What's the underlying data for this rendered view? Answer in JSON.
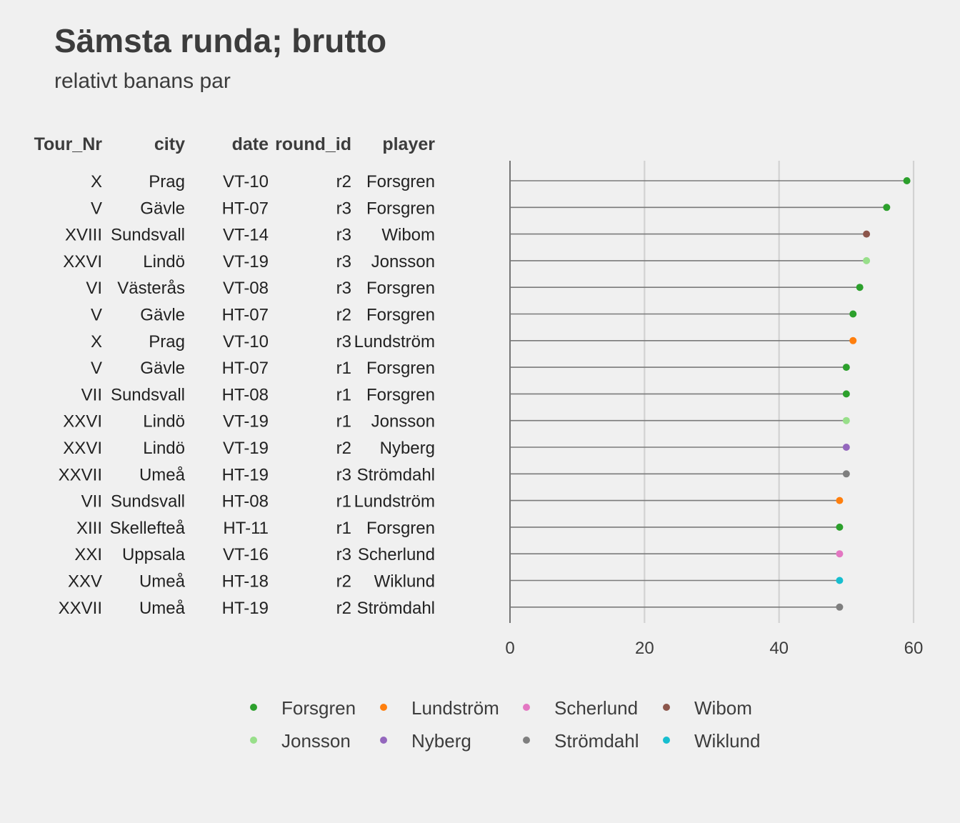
{
  "title": "Sämsta runda; brutto",
  "subtitle": "relativt banans par",
  "chart_data": {
    "type": "lollipop",
    "title": "Sämsta runda; brutto",
    "subtitle": "relativt banans par",
    "xlabel": "",
    "ylabel": "",
    "xlim": [
      0,
      60
    ],
    "x_ticks": [
      "0",
      "20",
      "40",
      "60"
    ],
    "grid": "vertical major",
    "legend_position": "bottom",
    "table_columns": [
      "Tour_Nr",
      "city",
      "date",
      "round_id",
      "player"
    ],
    "rows": [
      {
        "Tour_Nr": "X",
        "city": "Prag",
        "date": "VT-10",
        "round_id": "r2",
        "player": "Forsgren",
        "value": 59
      },
      {
        "Tour_Nr": "V",
        "city": "Gävle",
        "date": "HT-07",
        "round_id": "r3",
        "player": "Forsgren",
        "value": 56
      },
      {
        "Tour_Nr": "XVIII",
        "city": "Sundsvall",
        "date": "VT-14",
        "round_id": "r3",
        "player": "Wibom",
        "value": 53
      },
      {
        "Tour_Nr": "XXVI",
        "city": "Lindö",
        "date": "VT-19",
        "round_id": "r3",
        "player": "Jonsson",
        "value": 53
      },
      {
        "Tour_Nr": "VI",
        "city": "Västerås",
        "date": "VT-08",
        "round_id": "r3",
        "player": "Forsgren",
        "value": 52
      },
      {
        "Tour_Nr": "V",
        "city": "Gävle",
        "date": "HT-07",
        "round_id": "r2",
        "player": "Forsgren",
        "value": 51
      },
      {
        "Tour_Nr": "X",
        "city": "Prag",
        "date": "VT-10",
        "round_id": "r3",
        "player": "Lundström",
        "value": 51
      },
      {
        "Tour_Nr": "V",
        "city": "Gävle",
        "date": "HT-07",
        "round_id": "r1",
        "player": "Forsgren",
        "value": 50
      },
      {
        "Tour_Nr": "VII",
        "city": "Sundsvall",
        "date": "HT-08",
        "round_id": "r1",
        "player": "Forsgren",
        "value": 50
      },
      {
        "Tour_Nr": "XXVI",
        "city": "Lindö",
        "date": "VT-19",
        "round_id": "r1",
        "player": "Jonsson",
        "value": 50
      },
      {
        "Tour_Nr": "XXVI",
        "city": "Lindö",
        "date": "VT-19",
        "round_id": "r2",
        "player": "Nyberg",
        "value": 50
      },
      {
        "Tour_Nr": "XXVII",
        "city": "Umeå",
        "date": "HT-19",
        "round_id": "r3",
        "player": "Strömdahl",
        "value": 50
      },
      {
        "Tour_Nr": "VII",
        "city": "Sundsvall",
        "date": "HT-08",
        "round_id": "r1",
        "player": "Lundström",
        "value": 49
      },
      {
        "Tour_Nr": "XIII",
        "city": "Skellefteå",
        "date": "HT-11",
        "round_id": "r1",
        "player": "Forsgren",
        "value": 49
      },
      {
        "Tour_Nr": "XXI",
        "city": "Uppsala",
        "date": "VT-16",
        "round_id": "r3",
        "player": "Scherlund",
        "value": 49
      },
      {
        "Tour_Nr": "XXV",
        "city": "Umeå",
        "date": "HT-18",
        "round_id": "r2",
        "player": "Wiklund",
        "value": 49
      },
      {
        "Tour_Nr": "XXVII",
        "city": "Umeå",
        "date": "HT-19",
        "round_id": "r2",
        "player": "Strömdahl",
        "value": 49
      }
    ],
    "legend": [
      {
        "name": "Forsgren",
        "color": "#2ca02c"
      },
      {
        "name": "Jonsson",
        "color": "#98df8a"
      },
      {
        "name": "Lundström",
        "color": "#ff7f0e"
      },
      {
        "name": "Nyberg",
        "color": "#9467bd"
      },
      {
        "name": "Scherlund",
        "color": "#e377c2"
      },
      {
        "name": "Strömdahl",
        "color": "#7f7f7f"
      },
      {
        "name": "Wibom",
        "color": "#8c564b"
      },
      {
        "name": "Wiklund",
        "color": "#17becf"
      }
    ]
  }
}
